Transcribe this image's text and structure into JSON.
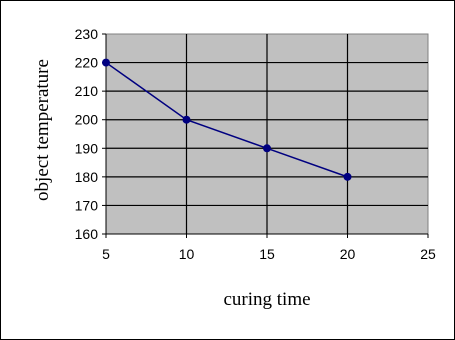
{
  "chart_data": {
    "type": "line",
    "title": "",
    "xlabel": "curing time",
    "ylabel": "object temperature",
    "x": [
      5,
      10,
      15,
      20
    ],
    "series": [
      {
        "values": [
          220,
          200,
          190,
          180
        ]
      }
    ],
    "xlim": [
      5,
      25
    ],
    "ylim": [
      160,
      230
    ],
    "xticks": [
      "5",
      "10",
      "15",
      "20",
      "25"
    ],
    "yticks": [
      "160",
      "170",
      "180",
      "190",
      "200",
      "210",
      "220",
      "230"
    ],
    "grid": true,
    "legend": "none",
    "colors": {
      "plot_background": "#c0c0c0",
      "line": "#000080",
      "marker": "#000080",
      "gridline": "#000000"
    }
  }
}
